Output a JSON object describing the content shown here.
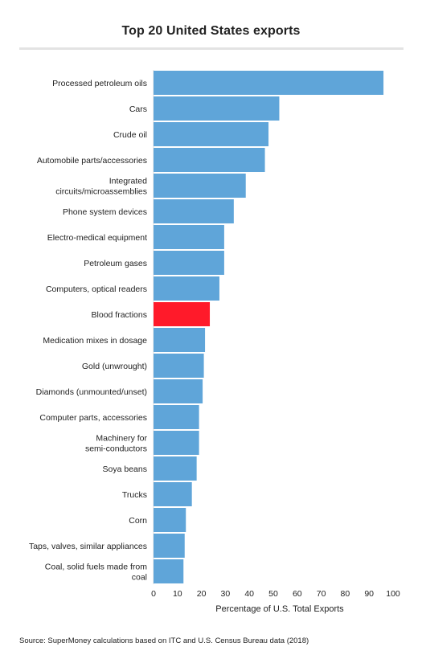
{
  "chart_data": {
    "type": "bar",
    "orientation": "horizontal",
    "title": "Top 20 United States exports",
    "xlabel": "Percentage of U.S. Total Exports",
    "ylabel": "",
    "xlim": [
      0,
      100
    ],
    "xticks": [
      0,
      10,
      20,
      30,
      40,
      50,
      60,
      70,
      80,
      90,
      100
    ],
    "grid": false,
    "categories": [
      "Processed petroleum oils",
      "Cars",
      "Crude oil",
      "Automobile parts/accessories",
      "Integrated circuits/microassemblies",
      "Phone system devices",
      "Electro-medical equipment",
      "Petroleum gases",
      "Computers, optical readers",
      "Blood fractions",
      "Medication mixes in dosage",
      "Gold (unwrought)",
      "Diamonds (unmounted/unset)",
      "Computer parts, accessories",
      "Machinery for semi-conductors",
      "Soya beans",
      "Trucks",
      "Corn",
      "Taps, valves, similar appliances",
      "Coal, solid fuels made from coal"
    ],
    "label_lines": [
      [
        "Processed petroleum oils"
      ],
      [
        "Cars"
      ],
      [
        "Crude oil"
      ],
      [
        "Automobile parts/accessories"
      ],
      [
        "Integrated",
        "circuits/microassemblies"
      ],
      [
        "Phone system devices"
      ],
      [
        "Electro-medical equipment"
      ],
      [
        "Petroleum gases"
      ],
      [
        "Computers, optical readers"
      ],
      [
        "Blood fractions"
      ],
      [
        "Medication mixes in dosage"
      ],
      [
        "Gold (unwrought)"
      ],
      [
        "Diamonds (unmounted/unset)"
      ],
      [
        "Computer parts, accessories"
      ],
      [
        "Machinery for",
        "semi-conductors"
      ],
      [
        "Soya beans"
      ],
      [
        "Trucks"
      ],
      [
        "Corn"
      ],
      [
        "Taps, valves, similar appliances"
      ],
      [
        "Coal, solid fuels made from",
        "coal"
      ]
    ],
    "values": [
      96,
      52.5,
      48,
      46.5,
      38.5,
      33.5,
      29.5,
      29.5,
      27.5,
      23.5,
      21.5,
      21,
      20.5,
      19,
      19,
      18,
      16,
      13.5,
      13,
      12.5
    ],
    "highlight_index": 9,
    "colors": {
      "bar": "#5fa5d9",
      "highlight": "#ff1a2a"
    }
  },
  "source": "Source:  SuperMoney calculations based on ITC and U.S. Census Bureau data (2018)"
}
